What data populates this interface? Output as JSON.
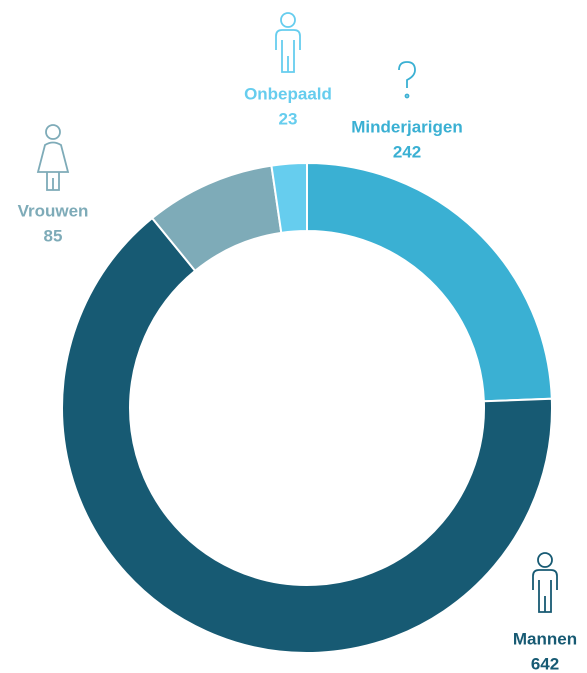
{
  "chart_data": {
    "type": "donut",
    "categories": [
      "Minderjarigen",
      "Mannen",
      "Vrouwen",
      "Onbepaald"
    ],
    "values": [
      242,
      642,
      85,
      23
    ],
    "colors": [
      "#3ab0d3",
      "#175a73",
      "#7eabb8",
      "#66cdee"
    ]
  }
}
